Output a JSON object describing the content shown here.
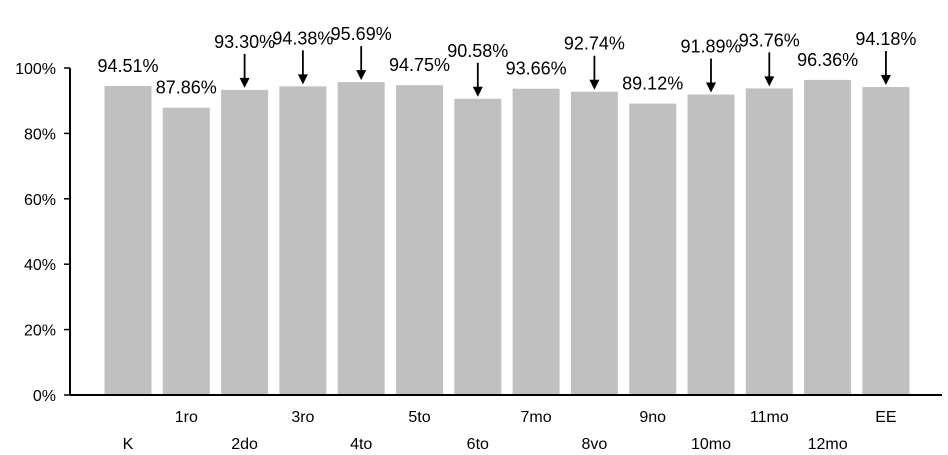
{
  "chart_data": {
    "type": "bar",
    "categories": [
      "K",
      "1ro",
      "2do",
      "3ro",
      "4to",
      "5to",
      "6to",
      "7mo",
      "8vo",
      "9no",
      "10mo",
      "11mo",
      "12mo",
      "EE"
    ],
    "values": [
      94.51,
      87.86,
      93.3,
      94.38,
      95.69,
      94.75,
      90.58,
      93.66,
      92.74,
      89.12,
      91.89,
      93.76,
      96.36,
      94.18
    ],
    "data_labels": [
      "94.51%",
      "87.86%",
      "93.30%",
      "94.38%",
      "95.69%",
      "94.75%",
      "90.58%",
      "93.66%",
      "92.74%",
      "89.12%",
      "91.89%",
      "93.76%",
      "96.36%",
      "94.18%"
    ],
    "label_arrows": [
      false,
      false,
      true,
      true,
      true,
      false,
      true,
      false,
      true,
      false,
      true,
      true,
      false,
      true
    ],
    "ylim": [
      0,
      100
    ],
    "y_ticks": [
      0,
      20,
      40,
      60,
      80,
      100
    ],
    "y_tick_labels": [
      "0%",
      "20%",
      "40%",
      "60%",
      "80%",
      "100%"
    ],
    "title": "",
    "xlabel": "",
    "ylabel": "",
    "grid": false,
    "legend": "none",
    "bar_color": "#c0c0c0",
    "axis_color": "#000000"
  }
}
